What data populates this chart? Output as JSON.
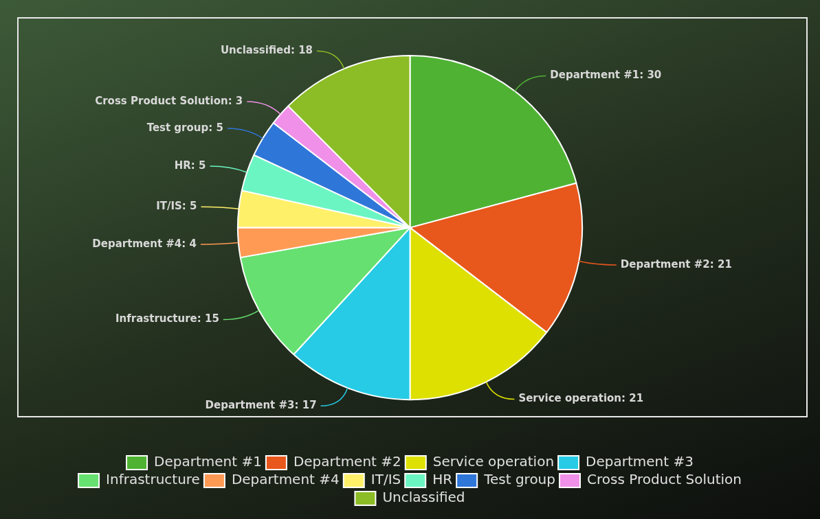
{
  "chart_data": {
    "type": "pie",
    "categories": [
      "Department #1",
      "Department #2",
      "Service operation",
      "Department #3",
      "Infrastructure",
      "Department #4",
      "IT/IS",
      "HR",
      "Test group",
      "Cross Product Solution",
      "Unclassified"
    ],
    "values": [
      30,
      21,
      21,
      17,
      15,
      4,
      5,
      5,
      5,
      3,
      18
    ],
    "value_labels": [
      "Department #1: 30",
      "Department #2: 21",
      "Service operation: 21",
      "Department #3: 17",
      "Infrastructure: 15",
      "Department #4: 4",
      "IT/IS: 5",
      "HR: 5",
      "Test group: 5",
      "Cross Product Solution: 3",
      "Unclassified: 18"
    ],
    "colors": [
      "#4fb233",
      "#e8571c",
      "#dde000",
      "#27cbe5",
      "#66e070",
      "#ff9a55",
      "#fff06a",
      "#6bf5c3",
      "#2f76d9",
      "#f090e8",
      "#8cbc26"
    ],
    "legend": "bottom"
  }
}
